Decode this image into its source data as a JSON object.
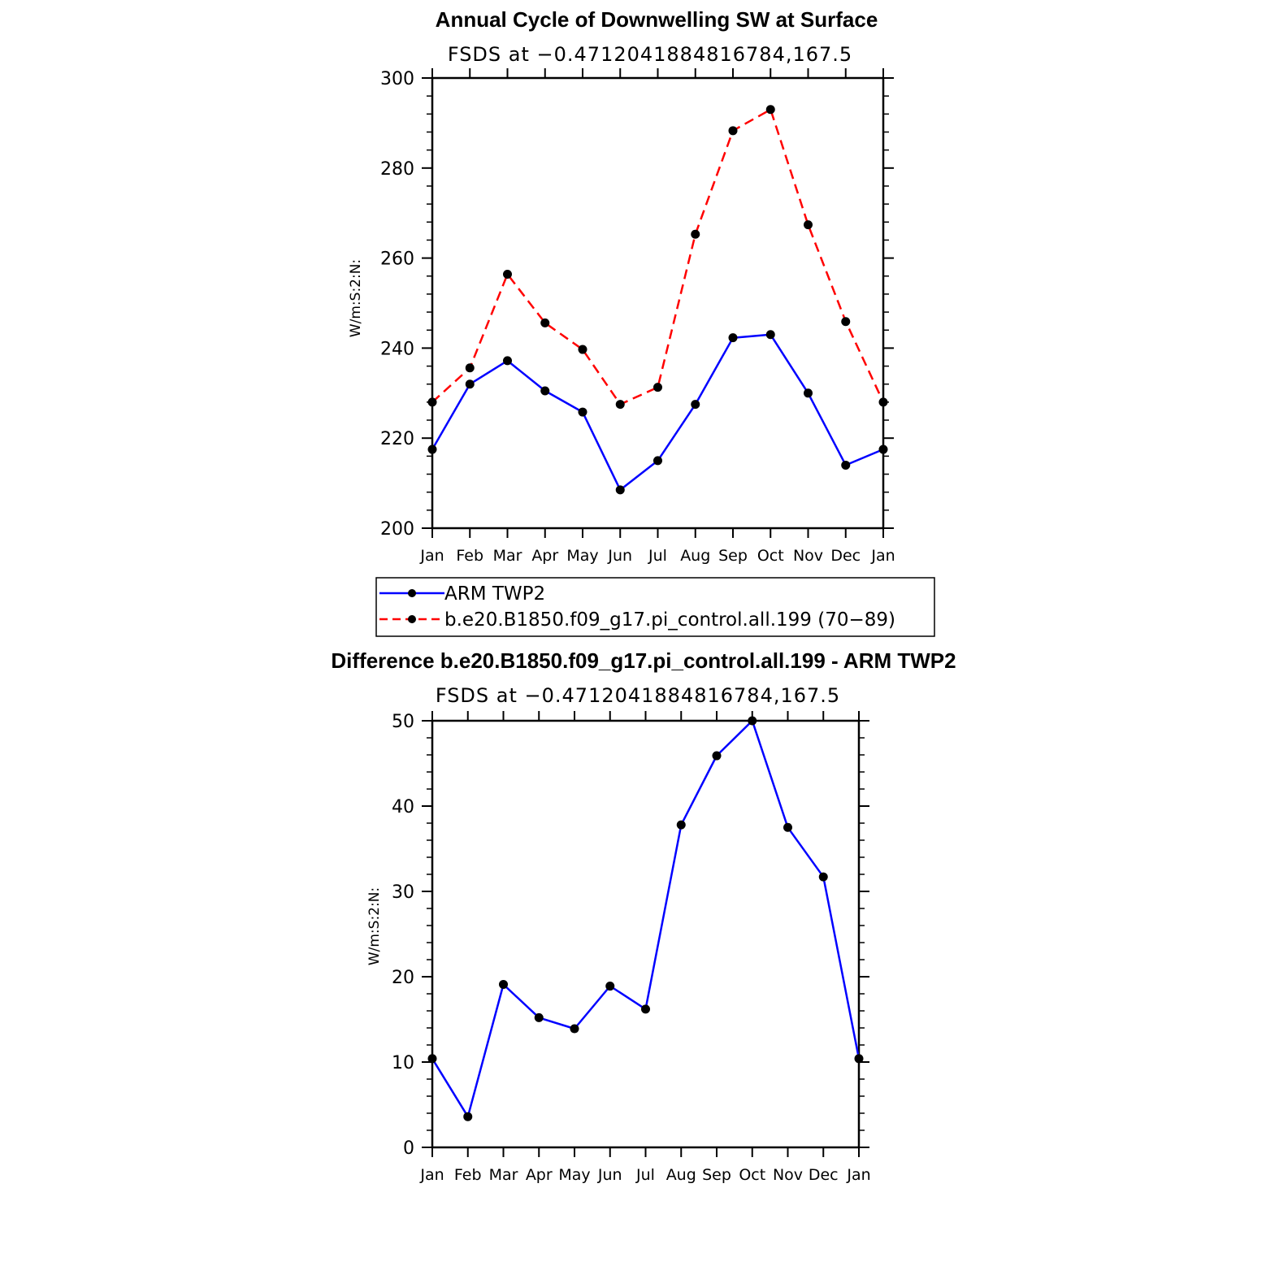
{
  "chart_data": [
    {
      "type": "line",
      "title": "Annual Cycle of Downwelling SW at Surface",
      "subtitle": "FSDS at −0.4712041884816784,167.5",
      "ylabel": "W/m:S:2:N:",
      "xlabel": "",
      "ylim": [
        200,
        300
      ],
      "yticks": [
        200,
        220,
        240,
        260,
        280,
        300
      ],
      "categories": [
        "Jan",
        "Feb",
        "Mar",
        "Apr",
        "May",
        "Jun",
        "Jul",
        "Aug",
        "Sep",
        "Oct",
        "Nov",
        "Dec",
        "Jan"
      ],
      "grid": false,
      "legend_position": "bottom",
      "series": [
        {
          "name": "ARM TWP2",
          "color": "#0000ff",
          "dash": "solid",
          "values": [
            217.5,
            232,
            237.2,
            230.5,
            225.8,
            208.5,
            215,
            227.5,
            242.3,
            243,
            230,
            214,
            217.5
          ]
        },
        {
          "name": "b.e20.B1850.f09_g17.pi_control.all.199 (70−89)",
          "color": "#ff0000",
          "dash": "dashed",
          "values": [
            228,
            235.6,
            256.4,
            245.6,
            239.7,
            227.5,
            231.3,
            265.3,
            288.3,
            293,
            267.4,
            245.9,
            228
          ]
        }
      ]
    },
    {
      "type": "line",
      "title": "Difference b.e20.B1850.f09_g17.pi_control.all.199 - ARM TWP2",
      "subtitle": "FSDS at −0.4712041884816784,167.5",
      "ylabel": "W/m:S:2:N:",
      "xlabel": "",
      "ylim": [
        0,
        50
      ],
      "yticks": [
        0,
        10,
        20,
        30,
        40,
        50
      ],
      "categories": [
        "Jan",
        "Feb",
        "Mar",
        "Apr",
        "May",
        "Jun",
        "Jul",
        "Aug",
        "Sep",
        "Oct",
        "Nov",
        "Dec",
        "Jan"
      ],
      "grid": false,
      "series": [
        {
          "color": "#0000ff",
          "dash": "solid",
          "values": [
            10.4,
            3.6,
            19.1,
            15.2,
            13.9,
            18.9,
            16.2,
            37.8,
            45.9,
            50,
            37.5,
            31.7,
            10.4
          ]
        }
      ]
    }
  ]
}
